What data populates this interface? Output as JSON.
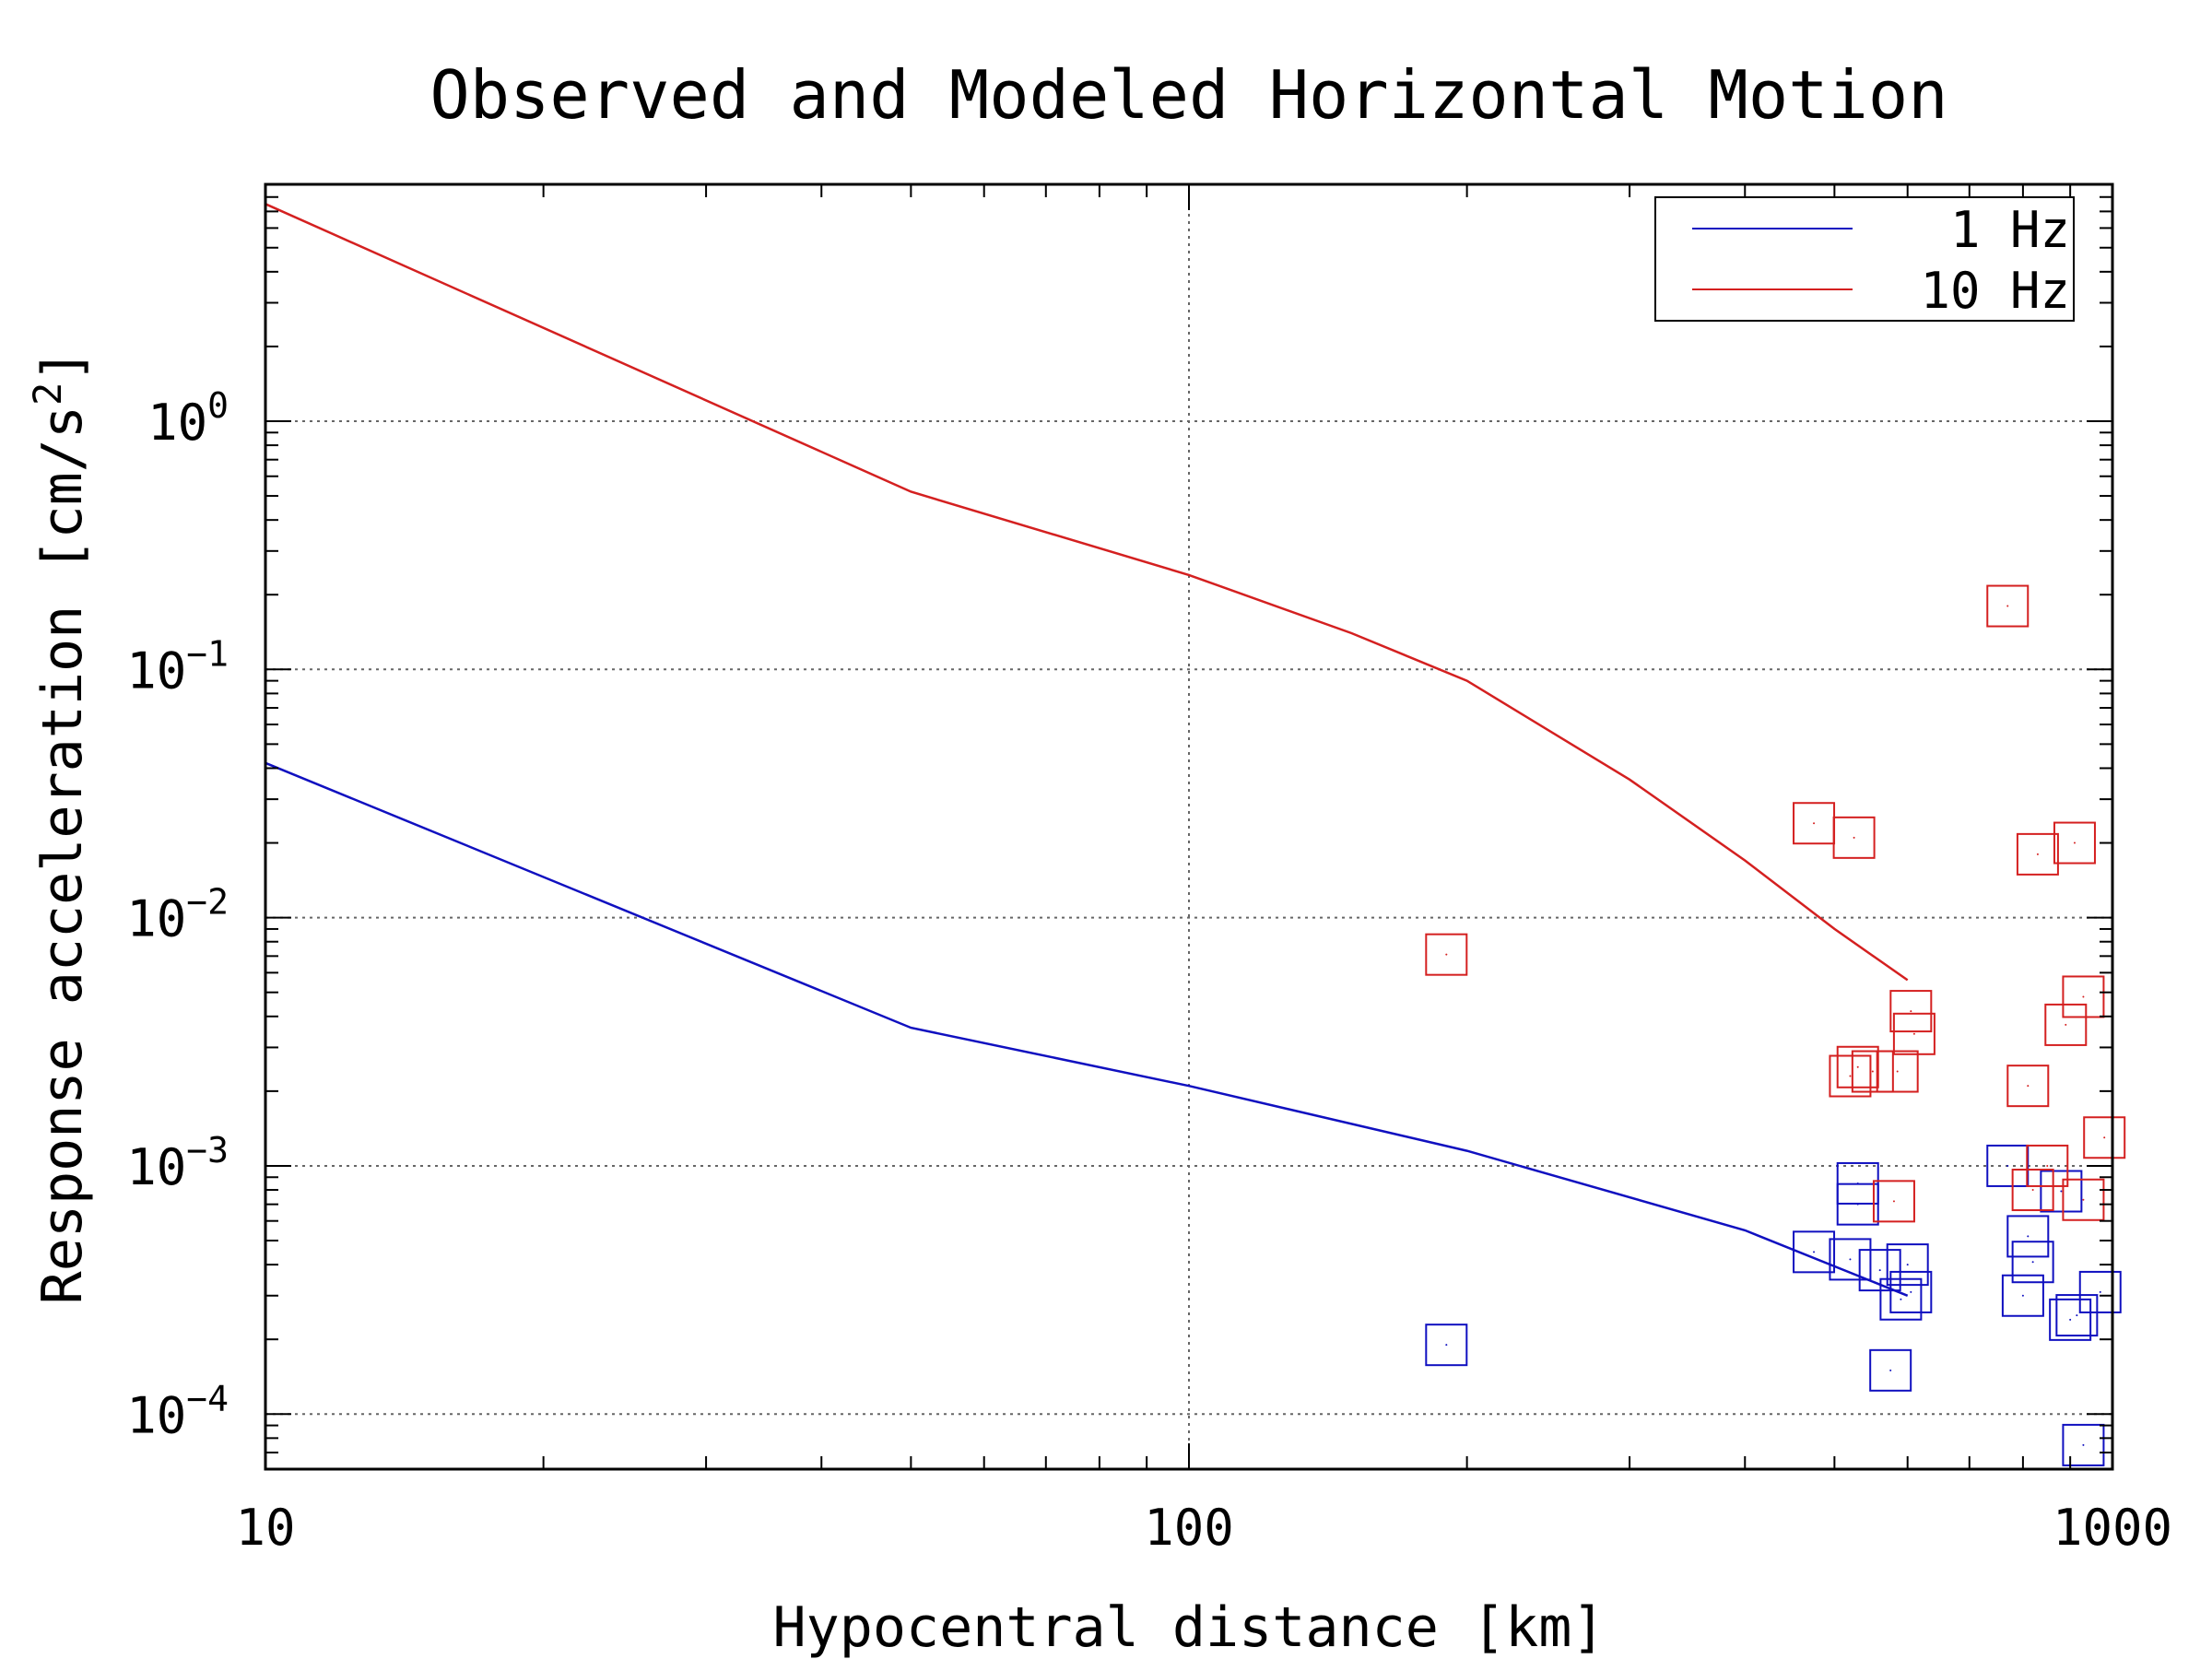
{
  "chart_data": {
    "type": "scatter",
    "title": "Observed and Modeled Horizontal Motion",
    "xlabel": "Hypocentral distance [km]",
    "ylabel": "Response acceleration [cm/s",
    "ylabel_sup": "2",
    "ylabel_end": "]",
    "x_scale": "log",
    "y_scale": "log",
    "xlim": [
      10,
      1000
    ],
    "ylim": [
      6e-05,
      9
    ],
    "x_ticks": [
      {
        "value": 10,
        "label": "10"
      },
      {
        "value": 100,
        "label": "100"
      },
      {
        "value": 1000,
        "label": "1000"
      }
    ],
    "y_ticks": [
      {
        "value": 0.0001,
        "base": "10",
        "exp": "−4"
      },
      {
        "value": 0.001,
        "base": "10",
        "exp": "−3"
      },
      {
        "value": 0.01,
        "base": "10",
        "exp": "−2"
      },
      {
        "value": 0.1,
        "base": "10",
        "exp": "−1"
      },
      {
        "value": 1,
        "base": "10",
        "exp": "0"
      }
    ],
    "grid": true,
    "legend_position": "top-right",
    "legend": [
      {
        "label": "1 Hz",
        "color": "#1010c0"
      },
      {
        "label": "10 Hz",
        "color": "#d42020"
      }
    ],
    "model_series": [
      {
        "color": "#1010c0",
        "x": [
          10,
          50,
          100,
          200,
          400,
          600
        ],
        "y": [
          0.042,
          0.0036,
          0.0021,
          0.00115,
          0.00055,
          0.0003
        ]
      },
      {
        "color": "#d42020",
        "x": [
          10,
          50,
          100,
          150,
          200,
          300,
          400,
          500,
          600
        ],
        "y": [
          7.5,
          0.52,
          0.24,
          0.14,
          0.09,
          0.036,
          0.017,
          0.009,
          0.0056
        ]
      }
    ],
    "observed_series": [
      {
        "color": "#1010c0",
        "points": [
          [
            190,
            0.00019
          ],
          [
            475,
            0.00045
          ],
          [
            520,
            0.00042
          ],
          [
            530,
            0.00085
          ],
          [
            530,
            0.0007
          ],
          [
            560,
            0.00038
          ],
          [
            575,
            0.00015
          ],
          [
            590,
            0.00029
          ],
          [
            600,
            0.0004
          ],
          [
            605,
            0.00031
          ],
          [
            770,
            0.001
          ],
          [
            800,
            0.0003
          ],
          [
            810,
            0.00052
          ],
          [
            820,
            0.00041
          ],
          [
            880,
            0.00079
          ],
          [
            900,
            0.00024
          ],
          [
            915,
            0.00025
          ],
          [
            930,
            7.5e-05
          ],
          [
            970,
            0.00031
          ]
        ]
      },
      {
        "color": "#d42020",
        "points": [
          [
            190,
            0.0071
          ],
          [
            475,
            0.024
          ],
          [
            525,
            0.021
          ],
          [
            520,
            0.0023
          ],
          [
            530,
            0.0025
          ],
          [
            550,
            0.0024
          ],
          [
            580,
            0.00072
          ],
          [
            585,
            0.0024
          ],
          [
            605,
            0.0042
          ],
          [
            610,
            0.0034
          ],
          [
            770,
            0.18
          ],
          [
            810,
            0.0021
          ],
          [
            820,
            0.0008
          ],
          [
            830,
            0.018
          ],
          [
            850,
            0.001
          ],
          [
            890,
            0.0037
          ],
          [
            910,
            0.02
          ],
          [
            930,
            0.0048
          ],
          [
            930,
            0.00073
          ],
          [
            980,
            0.0013
          ]
        ]
      }
    ]
  }
}
